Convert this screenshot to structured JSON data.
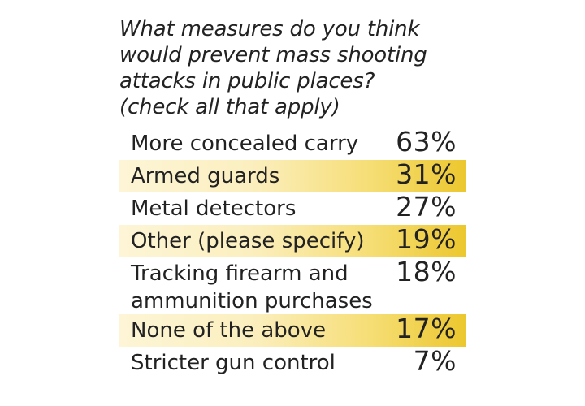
{
  "question": {
    "lines": [
      "What measures do you think",
      "would prevent mass shooting",
      "attacks in public places?",
      "(check all that apply)"
    ]
  },
  "colors": {
    "highlight_light": "#fdf5d6",
    "highlight_dark": "#ecc72e",
    "text": "#222222"
  },
  "chart_data": {
    "type": "table",
    "title": "What measures do you think would prevent mass shooting attacks in public places? (check all that apply)",
    "categories": [
      "More concealed carry",
      "Armed guards",
      "Metal detectors",
      "Other (please specify)",
      "Tracking firearm and ammunition purchases",
      "None of the above",
      "Stricter gun control"
    ],
    "values": [
      63,
      31,
      27,
      19,
      18,
      17,
      7
    ],
    "unit": "%",
    "rows": [
      {
        "label_lines": [
          "More concealed carry"
        ],
        "value_text": "63%",
        "value": 63,
        "shaded": false
      },
      {
        "label_lines": [
          "Armed guards"
        ],
        "value_text": "31%",
        "value": 31,
        "shaded": true
      },
      {
        "label_lines": [
          "Metal detectors"
        ],
        "value_text": "27%",
        "value": 27,
        "shaded": false
      },
      {
        "label_lines": [
          "Other (please specify)"
        ],
        "value_text": "19%",
        "value": 19,
        "shaded": true
      },
      {
        "label_lines": [
          "Tracking firearm and",
          "ammunition purchases"
        ],
        "value_text": "18%",
        "value": 18,
        "shaded": false
      },
      {
        "label_lines": [
          "None of the above"
        ],
        "value_text": "17%",
        "value": 17,
        "shaded": true
      },
      {
        "label_lines": [
          "Stricter gun control"
        ],
        "value_text": "7%",
        "value": 7,
        "shaded": false
      }
    ]
  }
}
